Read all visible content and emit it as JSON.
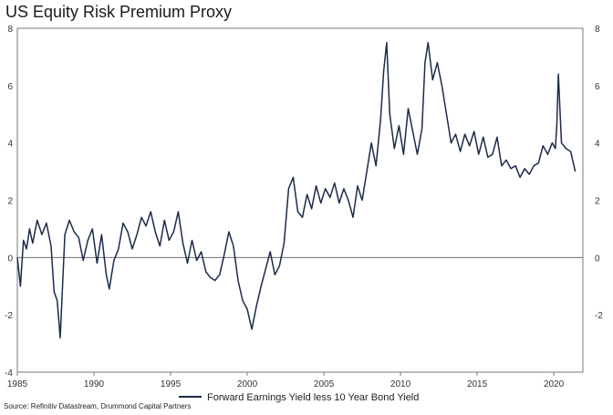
{
  "title": "US Equity Risk Premium Proxy",
  "source": "Source: Refinitiv Datastream, Drummond Capital Partners",
  "chart_data": {
    "type": "line",
    "title": "US Equity Risk Premium Proxy",
    "xlabel": "",
    "ylabel": "",
    "xlim": [
      1985,
      2021.9
    ],
    "ylim": [
      -4,
      8
    ],
    "x_ticks": [
      1985,
      1990,
      1995,
      2000,
      2005,
      2010,
      2015,
      2020
    ],
    "y_ticks": [
      -4,
      -2,
      0,
      2,
      4,
      6,
      8
    ],
    "y_ticks_right": [
      -2,
      0,
      2,
      4,
      6,
      8
    ],
    "grid": false,
    "zero_line": true,
    "legend": "bottom",
    "line_color": "#1c2a4a",
    "series": [
      {
        "name": "Forward Earnings Yield less 10 Year Bond Yield",
        "x": [
          1985.0,
          1985.2,
          1985.4,
          1985.6,
          1985.8,
          1986.0,
          1986.3,
          1986.6,
          1986.9,
          1987.2,
          1987.4,
          1987.6,
          1987.8,
          1987.9,
          1988.1,
          1988.4,
          1988.7,
          1989.0,
          1989.3,
          1989.6,
          1989.9,
          1990.2,
          1990.5,
          1990.8,
          1991.0,
          1991.3,
          1991.6,
          1991.9,
          1992.2,
          1992.5,
          1992.8,
          1993.1,
          1993.4,
          1993.7,
          1994.0,
          1994.3,
          1994.6,
          1994.9,
          1995.2,
          1995.5,
          1995.8,
          1996.1,
          1996.4,
          1996.7,
          1997.0,
          1997.3,
          1997.6,
          1997.9,
          1998.2,
          1998.5,
          1998.8,
          1999.1,
          1999.4,
          1999.7,
          2000.0,
          2000.3,
          2000.6,
          2000.9,
          2001.2,
          2001.5,
          2001.8,
          2002.1,
          2002.4,
          2002.7,
          2003.0,
          2003.3,
          2003.6,
          2003.9,
          2004.2,
          2004.5,
          2004.8,
          2005.1,
          2005.4,
          2005.7,
          2006.0,
          2006.3,
          2006.6,
          2006.9,
          2007.2,
          2007.5,
          2007.8,
          2008.1,
          2008.4,
          2008.7,
          2008.9,
          2009.1,
          2009.3,
          2009.6,
          2009.9,
          2010.2,
          2010.5,
          2010.8,
          2011.1,
          2011.4,
          2011.6,
          2011.8,
          2012.1,
          2012.4,
          2012.7,
          2013.0,
          2013.3,
          2013.6,
          2013.9,
          2014.2,
          2014.5,
          2014.8,
          2015.1,
          2015.4,
          2015.7,
          2016.0,
          2016.3,
          2016.6,
          2016.9,
          2017.2,
          2017.5,
          2017.8,
          2018.1,
          2018.4,
          2018.7,
          2019.0,
          2019.3,
          2019.6,
          2019.9,
          2020.1,
          2020.2,
          2020.3,
          2020.5,
          2020.8,
          2021.1,
          2021.4
        ],
        "values": [
          0.0,
          -1.0,
          0.6,
          0.3,
          1.0,
          0.5,
          1.3,
          0.8,
          1.2,
          0.4,
          -1.2,
          -1.5,
          -2.8,
          -1.6,
          0.8,
          1.3,
          0.9,
          0.7,
          -0.1,
          0.6,
          1.0,
          -0.2,
          0.8,
          -0.6,
          -1.1,
          -0.1,
          0.3,
          1.2,
          0.9,
          0.3,
          0.8,
          1.4,
          1.1,
          1.6,
          0.9,
          0.4,
          1.3,
          0.6,
          0.9,
          1.6,
          0.5,
          -0.2,
          0.6,
          -0.1,
          0.2,
          -0.5,
          -0.7,
          -0.8,
          -0.6,
          0.1,
          0.9,
          0.4,
          -0.8,
          -1.5,
          -1.8,
          -2.5,
          -1.7,
          -1.0,
          -0.4,
          0.2,
          -0.6,
          -0.3,
          0.5,
          2.4,
          2.8,
          1.6,
          1.4,
          2.2,
          1.7,
          2.5,
          1.9,
          2.4,
          2.1,
          2.6,
          1.9,
          2.4,
          2.0,
          1.4,
          2.5,
          2.0,
          3.0,
          4.0,
          3.2,
          4.8,
          6.5,
          7.5,
          5.0,
          3.8,
          4.6,
          3.6,
          5.2,
          4.4,
          3.6,
          4.5,
          6.8,
          7.5,
          6.2,
          6.8,
          6.0,
          5.0,
          4.0,
          4.3,
          3.7,
          4.3,
          3.9,
          4.4,
          3.6,
          4.2,
          3.5,
          3.6,
          4.2,
          3.2,
          3.4,
          3.1,
          3.2,
          2.8,
          3.1,
          2.9,
          3.2,
          3.3,
          3.9,
          3.6,
          4.0,
          3.8,
          4.6,
          6.4,
          4.0,
          3.8,
          3.7,
          3.0
        ]
      }
    ]
  }
}
